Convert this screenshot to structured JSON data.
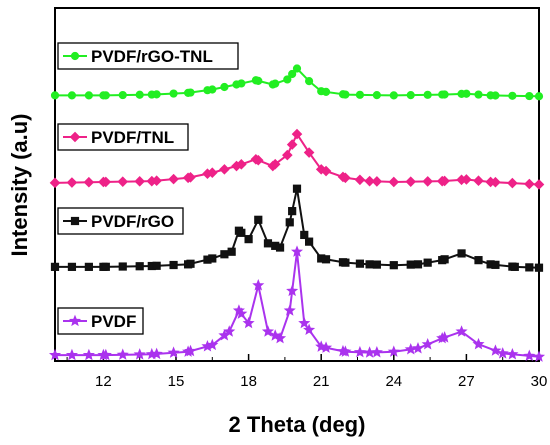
{
  "chart_data": {
    "type": "line",
    "xlabel": "2 Theta (deg)",
    "ylabel": "Intensity (a.u)",
    "xlim": [
      10,
      30
    ],
    "ylim": [
      0,
      4.2
    ],
    "x_ticks": [
      12,
      15,
      18,
      21,
      24,
      27,
      30
    ],
    "y_ticks_labeled": false,
    "grid": false,
    "series": [
      {
        "name": "PVDF/rGO-TNL",
        "color": "#22ee22",
        "marker": "circle",
        "offset": 3.15,
        "points": [
          [
            10,
            0.01
          ],
          [
            12,
            0.01
          ],
          [
            14,
            0.02
          ],
          [
            15.5,
            0.04
          ],
          [
            16.5,
            0.08
          ],
          [
            17.5,
            0.14
          ],
          [
            18.3,
            0.19
          ],
          [
            19,
            0.14
          ],
          [
            19.6,
            0.2
          ],
          [
            20,
            0.33
          ],
          [
            20.5,
            0.18
          ],
          [
            21,
            0.06
          ],
          [
            22,
            0.02
          ],
          [
            24,
            0.01
          ],
          [
            26,
            0.02
          ],
          [
            27,
            0.03
          ],
          [
            28,
            0.01
          ],
          [
            30,
            0.0
          ]
        ]
      },
      {
        "name": "PVDF/TNL",
        "color": "#ee2288",
        "marker": "diamond",
        "offset": 2.1,
        "points": [
          [
            10,
            0.02
          ],
          [
            12,
            0.03
          ],
          [
            14,
            0.04
          ],
          [
            15.5,
            0.08
          ],
          [
            16.5,
            0.14
          ],
          [
            17.5,
            0.22
          ],
          [
            18.3,
            0.3
          ],
          [
            19,
            0.22
          ],
          [
            19.6,
            0.35
          ],
          [
            20,
            0.6
          ],
          [
            20.5,
            0.38
          ],
          [
            21,
            0.18
          ],
          [
            22,
            0.08
          ],
          [
            23,
            0.04
          ],
          [
            24,
            0.03
          ],
          [
            26,
            0.04
          ],
          [
            27,
            0.06
          ],
          [
            28,
            0.03
          ],
          [
            30,
            0.0
          ]
        ]
      },
      {
        "name": "PVDF/rGO",
        "color": "#111111",
        "marker": "square",
        "offset": 1.1,
        "points": [
          [
            10,
            0.02
          ],
          [
            12,
            0.02
          ],
          [
            14,
            0.03
          ],
          [
            15.5,
            0.05
          ],
          [
            16.5,
            0.12
          ],
          [
            17.3,
            0.2
          ],
          [
            17.6,
            0.45
          ],
          [
            18,
            0.35
          ],
          [
            18.4,
            0.58
          ],
          [
            18.8,
            0.3
          ],
          [
            19.3,
            0.25
          ],
          [
            19.7,
            0.55
          ],
          [
            20,
            0.95
          ],
          [
            20.3,
            0.4
          ],
          [
            21,
            0.12
          ],
          [
            22,
            0.07
          ],
          [
            23,
            0.05
          ],
          [
            24,
            0.04
          ],
          [
            25,
            0.05
          ],
          [
            26,
            0.1
          ],
          [
            26.8,
            0.18
          ],
          [
            27.5,
            0.1
          ],
          [
            28,
            0.05
          ],
          [
            29,
            0.02
          ],
          [
            30,
            0.01
          ]
        ]
      },
      {
        "name": "PVDF",
        "color": "#aa33ee",
        "marker": "star",
        "offset": 0.05,
        "points": [
          [
            10,
            0.02
          ],
          [
            12,
            0.02
          ],
          [
            14,
            0.03
          ],
          [
            15.5,
            0.06
          ],
          [
            16.5,
            0.14
          ],
          [
            17.2,
            0.3
          ],
          [
            17.6,
            0.55
          ],
          [
            18,
            0.4
          ],
          [
            18.4,
            0.85
          ],
          [
            18.8,
            0.3
          ],
          [
            19.3,
            0.22
          ],
          [
            19.7,
            0.55
          ],
          [
            20,
            1.25
          ],
          [
            20.3,
            0.4
          ],
          [
            21,
            0.12
          ],
          [
            22,
            0.06
          ],
          [
            23,
            0.05
          ],
          [
            24,
            0.06
          ],
          [
            25,
            0.1
          ],
          [
            26,
            0.22
          ],
          [
            26.8,
            0.3
          ],
          [
            27.5,
            0.15
          ],
          [
            28.5,
            0.04
          ],
          [
            30,
            0.0
          ]
        ]
      }
    ],
    "legend_placement": "each label placed above its curve, left side"
  }
}
